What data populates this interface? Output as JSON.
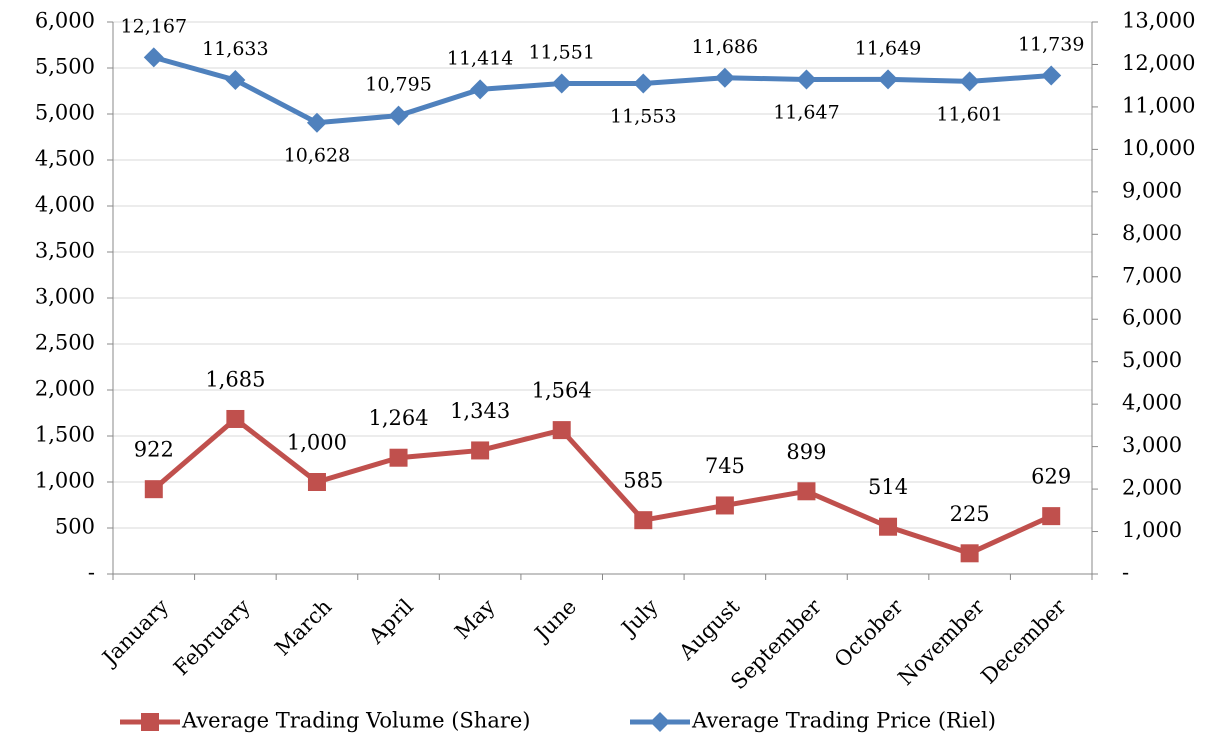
{
  "chart_data": {
    "type": "line",
    "categories": [
      "January",
      "February",
      "March",
      "April",
      "May",
      "June",
      "July",
      "August",
      "September",
      "October",
      "November",
      "December"
    ],
    "series": [
      {
        "name": "Average Trading Volume (Share)",
        "color": "#c0504d",
        "marker": "square",
        "axis": "y",
        "values": [
          922,
          1685,
          1000,
          1264,
          1343,
          1564,
          585,
          745,
          899,
          514,
          225,
          629
        ],
        "value_labels": [
          "922",
          "1,685",
          "1,000",
          "1,264",
          "1,343",
          "1,564",
          "585",
          "745",
          "899",
          "514",
          "225",
          "629"
        ]
      },
      {
        "name": "Average Trading Price (Riel)",
        "color": "#4f81bd",
        "marker": "diamond",
        "axis": "y2",
        "values": [
          12167,
          11633,
          10628,
          10795,
          11414,
          11551,
          11553,
          11686,
          11647,
          11649,
          11601,
          11739
        ],
        "value_labels": [
          "12,167",
          "11,633",
          "10,628",
          "10,795",
          "11,414",
          "11,551",
          "11,553",
          "11,686",
          "11,647",
          "11,649",
          "11,601",
          "11,739"
        ]
      }
    ],
    "ylim": [
      0,
      6000
    ],
    "yticks": [
      {
        "value": 0,
        "label": "-"
      },
      500,
      {
        "value": 1000,
        "label": "1,000"
      },
      {
        "value": 1500,
        "label": "1,500"
      },
      {
        "value": 2000,
        "label": "2,000"
      },
      {
        "value": 2500,
        "label": "2,500"
      },
      {
        "value": 3000,
        "label": "3,000"
      },
      {
        "value": 3500,
        "label": "3,500"
      },
      {
        "value": 4000,
        "label": "4,000"
      },
      {
        "value": 4500,
        "label": "4,500"
      },
      {
        "value": 5000,
        "label": "5,000"
      },
      {
        "value": 5500,
        "label": "5,500"
      },
      {
        "value": 6000,
        "label": "6,000"
      }
    ],
    "y2lim": [
      0,
      13000
    ],
    "y2ticks": [
      {
        "value": 0,
        "label": "-"
      },
      {
        "value": 1000,
        "label": "1,000"
      },
      {
        "value": 2000,
        "label": "2,000"
      },
      {
        "value": 3000,
        "label": "3,000"
      },
      {
        "value": 4000,
        "label": "4,000"
      },
      {
        "value": 5000,
        "label": "5,000"
      },
      {
        "value": 6000,
        "label": "6,000"
      },
      {
        "value": 7000,
        "label": "7,000"
      },
      {
        "value": 8000,
        "label": "8,000"
      },
      {
        "value": 9000,
        "label": "9,000"
      },
      {
        "value": 10000,
        "label": "10,000"
      },
      {
        "value": 11000,
        "label": "11,000"
      },
      {
        "value": 12000,
        "label": "12,000"
      },
      {
        "value": 13000,
        "label": "13,000"
      }
    ],
    "grid": true,
    "legend": "bottom"
  }
}
